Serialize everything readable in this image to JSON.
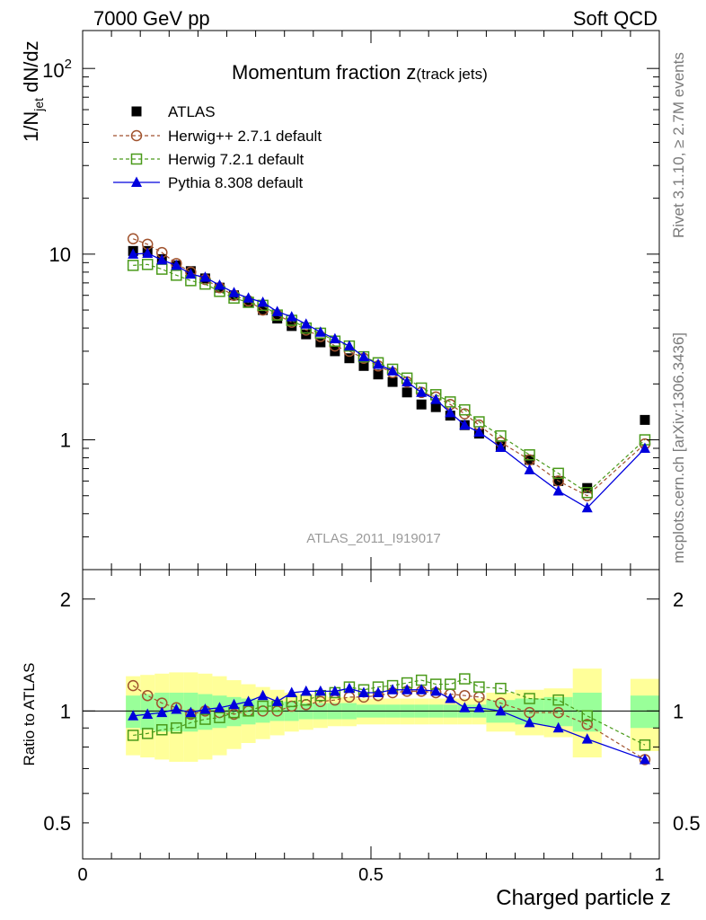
{
  "header": {
    "left": "7000 GeV pp",
    "right": "Soft QCD"
  },
  "side_labels": {
    "upper": "Rivet 3.1.10, ≥ 2.7M events",
    "lower": "mcplots.cern.ch [arXiv:1306.3436]"
  },
  "colors": {
    "atlas": "#000000",
    "herwigpp": "#a0522d",
    "herwig7": "#4a9a1a",
    "pythia": "#0000dd",
    "band_outer": "#ffff99",
    "band_inner": "#99ff99"
  },
  "chart_data": {
    "type": "scatter",
    "title_main": "Momentum fraction ",
    "title_z": "z",
    "title_sub": "(track jets)",
    "analysis": "ATLAS_2011_I919017",
    "xlabel": "Charged particle z",
    "ylabel": "1/N",
    "ylabel_sub": "jet",
    "ylabel_rest": " dN/dz",
    "ratio_ylabel": "Ratio to ATLAS",
    "xlim": [
      0,
      1
    ],
    "ylim_main": [
      0.2,
      160
    ],
    "ylim_ratio": [
      0.4,
      2.4
    ],
    "xticks": [
      0,
      0.5,
      1
    ],
    "xtick_labels": [
      "0",
      "0.5",
      "1"
    ],
    "main_ytick_labels": [
      {
        "v": 1,
        "t": "1"
      },
      {
        "v": 10,
        "t": "10"
      }
    ],
    "main_ytick_pow": {
      "v": 100,
      "base": "10",
      "exp": "2"
    },
    "ratio_yticks": [
      {
        "v": 0.5,
        "t": "0.5"
      },
      {
        "v": 1,
        "t": "1"
      },
      {
        "v": 2,
        "t": "2"
      }
    ],
    "x": [
      0.0875,
      0.1125,
      0.1375,
      0.1625,
      0.1875,
      0.2125,
      0.2375,
      0.2625,
      0.2875,
      0.3125,
      0.3375,
      0.3625,
      0.3875,
      0.4125,
      0.4375,
      0.4625,
      0.4875,
      0.5125,
      0.5375,
      0.5625,
      0.5875,
      0.6125,
      0.6375,
      0.6625,
      0.6875,
      0.725,
      0.775,
      0.825,
      0.875,
      0.975
    ],
    "x_bins": [
      [
        0.075,
        0.1
      ],
      [
        0.1,
        0.125
      ],
      [
        0.125,
        0.15
      ],
      [
        0.15,
        0.175
      ],
      [
        0.175,
        0.2
      ],
      [
        0.2,
        0.225
      ],
      [
        0.225,
        0.25
      ],
      [
        0.25,
        0.275
      ],
      [
        0.275,
        0.3
      ],
      [
        0.3,
        0.325
      ],
      [
        0.325,
        0.35
      ],
      [
        0.35,
        0.375
      ],
      [
        0.375,
        0.4
      ],
      [
        0.4,
        0.425
      ],
      [
        0.425,
        0.45
      ],
      [
        0.45,
        0.475
      ],
      [
        0.475,
        0.5
      ],
      [
        0.5,
        0.525
      ],
      [
        0.525,
        0.55
      ],
      [
        0.55,
        0.575
      ],
      [
        0.575,
        0.6
      ],
      [
        0.6,
        0.625
      ],
      [
        0.625,
        0.65
      ],
      [
        0.65,
        0.675
      ],
      [
        0.675,
        0.7
      ],
      [
        0.7,
        0.75
      ],
      [
        0.75,
        0.8
      ],
      [
        0.8,
        0.85
      ],
      [
        0.85,
        0.9
      ],
      [
        0.95,
        1.0
      ]
    ],
    "band_outer": [
      [
        0.76,
        1.24
      ],
      [
        0.75,
        1.25
      ],
      [
        0.74,
        1.26
      ],
      [
        0.73,
        1.27
      ],
      [
        0.73,
        1.27
      ],
      [
        0.74,
        1.26
      ],
      [
        0.76,
        1.24
      ],
      [
        0.79,
        1.21
      ],
      [
        0.82,
        1.18
      ],
      [
        0.84,
        1.16
      ],
      [
        0.86,
        1.14
      ],
      [
        0.88,
        1.12
      ],
      [
        0.89,
        1.11
      ],
      [
        0.9,
        1.1
      ],
      [
        0.91,
        1.09
      ],
      [
        0.91,
        1.09
      ],
      [
        0.92,
        1.08
      ],
      [
        0.92,
        1.08
      ],
      [
        0.92,
        1.08
      ],
      [
        0.92,
        1.08
      ],
      [
        0.92,
        1.08
      ],
      [
        0.92,
        1.08
      ],
      [
        0.92,
        1.08
      ],
      [
        0.92,
        1.08
      ],
      [
        0.92,
        1.08
      ],
      [
        0.88,
        1.12
      ],
      [
        0.86,
        1.14
      ],
      [
        0.85,
        1.15
      ],
      [
        0.75,
        1.3
      ],
      [
        0.78,
        1.22
      ]
    ],
    "band_inner": [
      [
        0.9,
        1.1
      ],
      [
        0.89,
        1.11
      ],
      [
        0.88,
        1.12
      ],
      [
        0.88,
        1.12
      ],
      [
        0.88,
        1.12
      ],
      [
        0.89,
        1.11
      ],
      [
        0.9,
        1.1
      ],
      [
        0.91,
        1.09
      ],
      [
        0.92,
        1.08
      ],
      [
        0.93,
        1.07
      ],
      [
        0.94,
        1.06
      ],
      [
        0.94,
        1.06
      ],
      [
        0.95,
        1.05
      ],
      [
        0.95,
        1.05
      ],
      [
        0.95,
        1.05
      ],
      [
        0.95,
        1.05
      ],
      [
        0.96,
        1.04
      ],
      [
        0.96,
        1.04
      ],
      [
        0.96,
        1.04
      ],
      [
        0.96,
        1.04
      ],
      [
        0.96,
        1.04
      ],
      [
        0.96,
        1.04
      ],
      [
        0.96,
        1.04
      ],
      [
        0.96,
        1.04
      ],
      [
        0.96,
        1.04
      ],
      [
        0.93,
        1.07
      ],
      [
        0.92,
        1.08
      ],
      [
        0.91,
        1.09
      ],
      [
        0.88,
        1.12
      ],
      [
        0.9,
        1.1
      ]
    ],
    "series": [
      {
        "name": "ATLAS",
        "marker": "square_filled",
        "line": "none",
        "colorKey": "atlas",
        "values": [
          10.4,
          10.4,
          9.4,
          8.7,
          8.1,
          7.4,
          6.6,
          6.0,
          5.5,
          5.0,
          4.5,
          4.1,
          3.7,
          3.35,
          3.0,
          2.75,
          2.5,
          2.25,
          2.05,
          1.8,
          1.55,
          1.5,
          1.35,
          1.2,
          1.08,
          0.92,
          0.78,
          0.6,
          0.55,
          1.28
        ]
      },
      {
        "name": "Herwig++ 2.7.1 default",
        "marker": "circle_open",
        "line": "dashed",
        "colorKey": "herwigpp",
        "values": [
          12.1,
          11.3,
          10.2,
          8.9,
          8.0,
          7.3,
          6.6,
          6.0,
          5.6,
          5.0,
          4.7,
          4.3,
          3.9,
          3.6,
          3.2,
          3.0,
          2.75,
          2.5,
          2.3,
          2.05,
          1.8,
          1.7,
          1.55,
          1.38,
          1.2,
          0.97,
          0.78,
          0.6,
          0.5,
          0.95
        ]
      },
      {
        "name": "Herwig 7.2.1 default",
        "marker": "square_open",
        "line": "dashed",
        "colorKey": "herwig7",
        "values": [
          8.7,
          8.8,
          8.3,
          7.7,
          7.2,
          6.9,
          6.3,
          5.8,
          5.5,
          5.3,
          4.7,
          4.4,
          4.0,
          3.75,
          3.4,
          3.2,
          2.8,
          2.6,
          2.4,
          2.15,
          1.9,
          1.75,
          1.6,
          1.45,
          1.25,
          1.05,
          0.83,
          0.66,
          0.52,
          1.0
        ]
      },
      {
        "name": "Pythia 8.308 default",
        "marker": "triangle_filled",
        "line": "solid",
        "colorKey": "pythia",
        "values": [
          10.0,
          10.1,
          9.3,
          8.7,
          7.8,
          7.5,
          6.8,
          6.2,
          5.8,
          5.5,
          4.9,
          4.6,
          4.2,
          3.8,
          3.5,
          3.2,
          2.8,
          2.55,
          2.35,
          2.05,
          1.8,
          1.65,
          1.4,
          1.2,
          1.1,
          0.91,
          0.69,
          0.53,
          0.43,
          0.9
        ]
      }
    ],
    "ratios": {
      "Herwig++ 2.7.1 default": [
        1.17,
        1.1,
        1.05,
        1.02,
        0.98,
        1.0,
        0.99,
        0.98,
        1.0,
        1.0,
        1.0,
        1.03,
        1.04,
        1.06,
        1.07,
        1.09,
        1.09,
        1.1,
        1.12,
        1.13,
        1.13,
        1.12,
        1.11,
        1.1,
        1.09,
        1.05,
        0.99,
        0.99,
        0.92,
        0.74
      ],
      "Herwig 7.2.1 default": [
        0.86,
        0.87,
        0.89,
        0.9,
        0.93,
        0.95,
        0.96,
        0.99,
        1.0,
        1.03,
        1.03,
        1.06,
        1.07,
        1.1,
        1.12,
        1.16,
        1.14,
        1.16,
        1.17,
        1.19,
        1.21,
        1.18,
        1.18,
        1.22,
        1.16,
        1.15,
        1.08,
        1.07,
        0.97,
        0.81
      ],
      "Pythia 8.308 default": [
        0.97,
        0.98,
        0.99,
        1.01,
        0.99,
        1.01,
        1.02,
        1.04,
        1.06,
        1.1,
        1.06,
        1.12,
        1.13,
        1.13,
        1.13,
        1.15,
        1.12,
        1.12,
        1.14,
        1.14,
        1.14,
        1.13,
        1.08,
        1.02,
        1.02,
        1.0,
        0.93,
        0.9,
        0.84,
        0.74
      ]
    }
  }
}
